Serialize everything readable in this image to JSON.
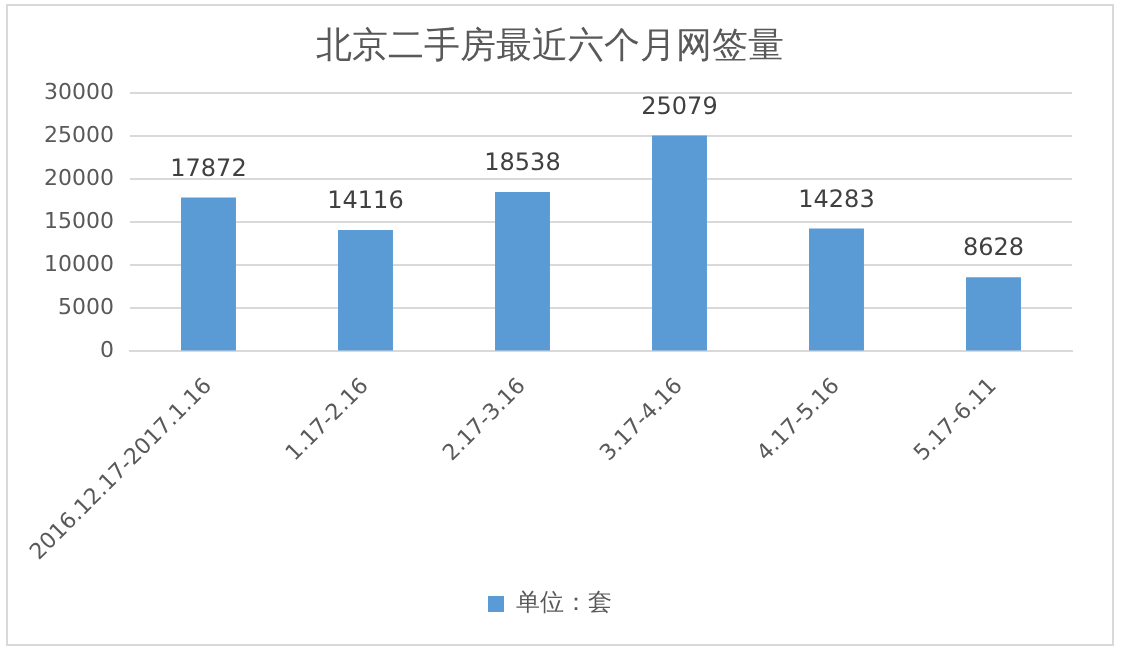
{
  "chart_data": {
    "type": "bar",
    "title": "北京二手房最近六个月网签量",
    "categories": [
      "2016.12.17-2017.1.16",
      "1.17-2.16",
      "2.17-3.16",
      "3.17-4.16",
      "4.17-5.16",
      "5.17-6.11"
    ],
    "series": [
      {
        "name": "单位：套",
        "color": "#5b9bd5",
        "values": [
          17872,
          14116,
          18538,
          25079,
          14283,
          8628
        ]
      }
    ],
    "ylim": [
      0,
      30000
    ],
    "yticks": [
      0,
      5000,
      10000,
      15000,
      20000,
      25000,
      30000
    ],
    "grid": "y",
    "legend": "bottom",
    "data_labels": true
  }
}
